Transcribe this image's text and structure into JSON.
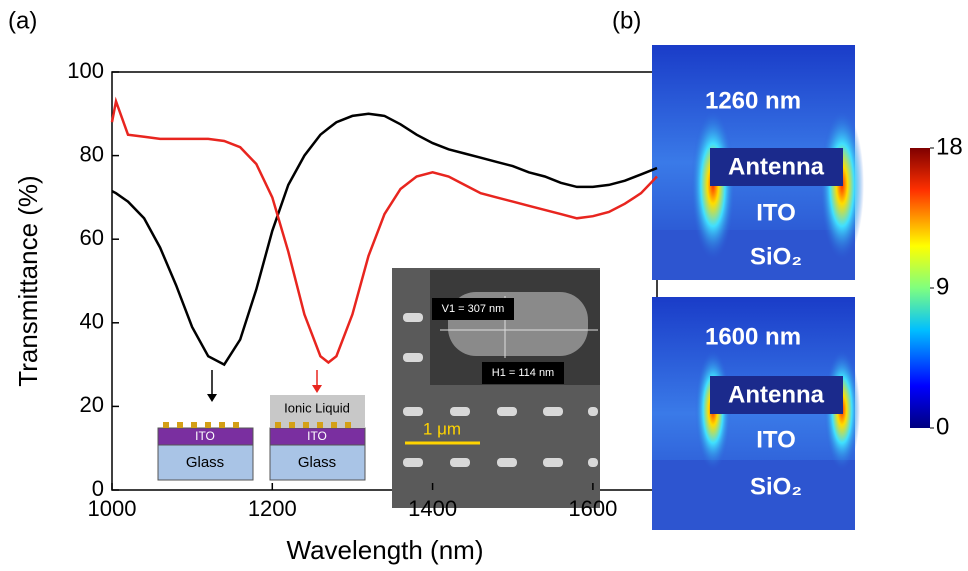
{
  "chart_data": {
    "type": "line",
    "panel_label": "(a)",
    "xlabel": "Wavelength (nm)",
    "ylabel": "Transmittance (%)",
    "xlim": [
      1000,
      1680
    ],
    "ylim": [
      0,
      100
    ],
    "xticks": [
      1000,
      1200,
      1400,
      1600
    ],
    "yticks": [
      0,
      20,
      40,
      60,
      80,
      100
    ],
    "x": [
      1000,
      1005,
      1020,
      1040,
      1060,
      1080,
      1100,
      1120,
      1140,
      1160,
      1180,
      1200,
      1220,
      1240,
      1260,
      1270,
      1280,
      1300,
      1320,
      1340,
      1360,
      1380,
      1400,
      1420,
      1440,
      1460,
      1480,
      1500,
      1520,
      1540,
      1560,
      1580,
      1600,
      1620,
      1640,
      1660,
      1680
    ],
    "series": [
      {
        "color": "#000000",
        "values": [
          71.5,
          71,
          69,
          65,
          58,
          49,
          39,
          32,
          30,
          36,
          48,
          62,
          73,
          80,
          85,
          86.5,
          88,
          89.5,
          90,
          89.5,
          87.5,
          85,
          83,
          81.5,
          80.5,
          79.5,
          78.5,
          77.5,
          76,
          75,
          73.5,
          72.5,
          72.5,
          73,
          74,
          75.5,
          77
        ]
      },
      {
        "color": "#e8251f",
        "values": [
          88,
          93,
          85,
          84.5,
          84,
          84,
          84,
          84,
          83.5,
          82,
          78,
          70,
          57,
          42,
          32,
          30.5,
          32,
          42,
          56,
          66,
          72,
          75,
          76,
          75,
          73,
          71,
          70,
          69,
          68,
          67,
          66,
          65,
          65.5,
          66.5,
          68.5,
          71,
          75
        ]
      }
    ],
    "insets": {
      "left_layer": "ITO",
      "left_substrate": "Glass",
      "right_top": "Ionic Liquid",
      "right_layer": "ITO",
      "right_substrate": "Glass",
      "sem_v": "V1 = 307 nm",
      "sem_h": "H1 = 114 nm",
      "scale_bar": "1 μm"
    }
  },
  "panel_b": {
    "label": "(b)",
    "maps": [
      {
        "wavelength": "1260 nm",
        "antenna": "Antenna",
        "layer": "ITO",
        "substrate": "SiO₂"
      },
      {
        "wavelength": "1600 nm",
        "antenna": "Antenna",
        "layer": "ITO",
        "substrate": "SiO₂"
      }
    ],
    "colorbar_lim": [
      0,
      18
    ],
    "colorbar_ticks": [
      0,
      9,
      18
    ]
  }
}
